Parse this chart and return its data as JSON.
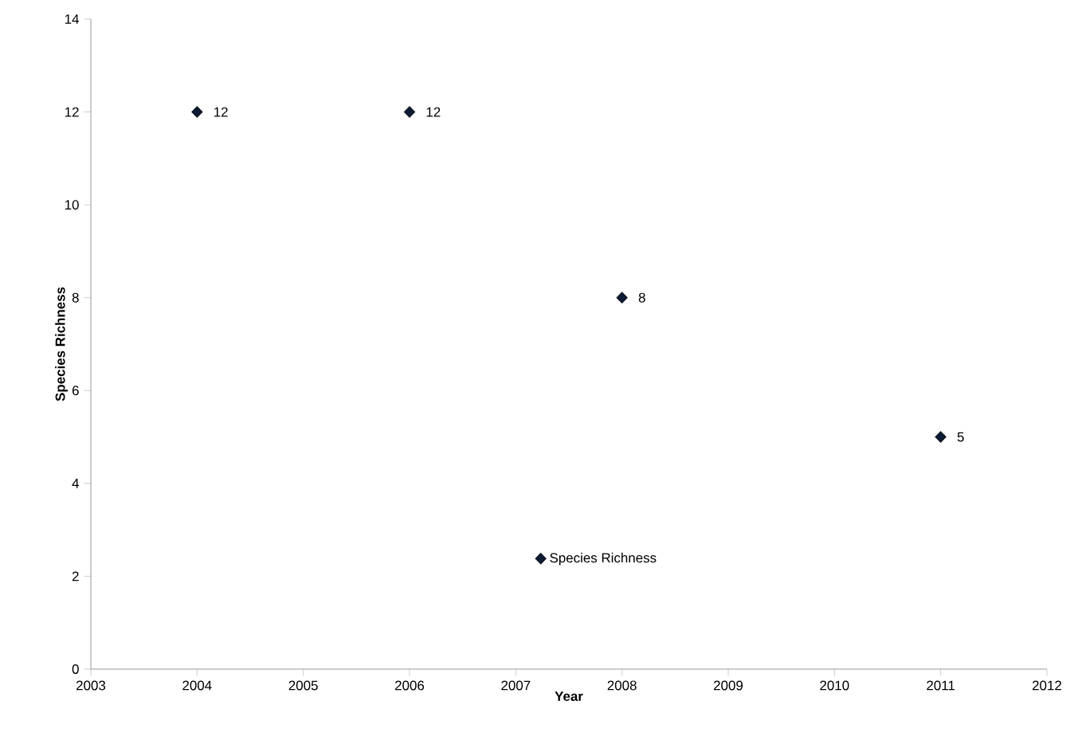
{
  "chart_data": {
    "type": "scatter",
    "xlabel": "Year",
    "ylabel": "Species Richness",
    "x": [
      2004,
      2006,
      2008,
      2011
    ],
    "series": [
      {
        "name": "Species Richness",
        "color": "#0d1a33",
        "values": [
          12,
          12,
          8,
          5
        ]
      }
    ],
    "xlim": [
      2003,
      2012
    ],
    "xticks": [
      2003,
      2004,
      2005,
      2006,
      2007,
      2008,
      2009,
      2010,
      2011,
      2012
    ],
    "ylim": [
      0,
      14
    ],
    "yticks": [
      0,
      2,
      4,
      6,
      8,
      10,
      12,
      14
    ],
    "marker": "diamond",
    "data_labels": true,
    "legend": "bottom",
    "grid": false
  }
}
